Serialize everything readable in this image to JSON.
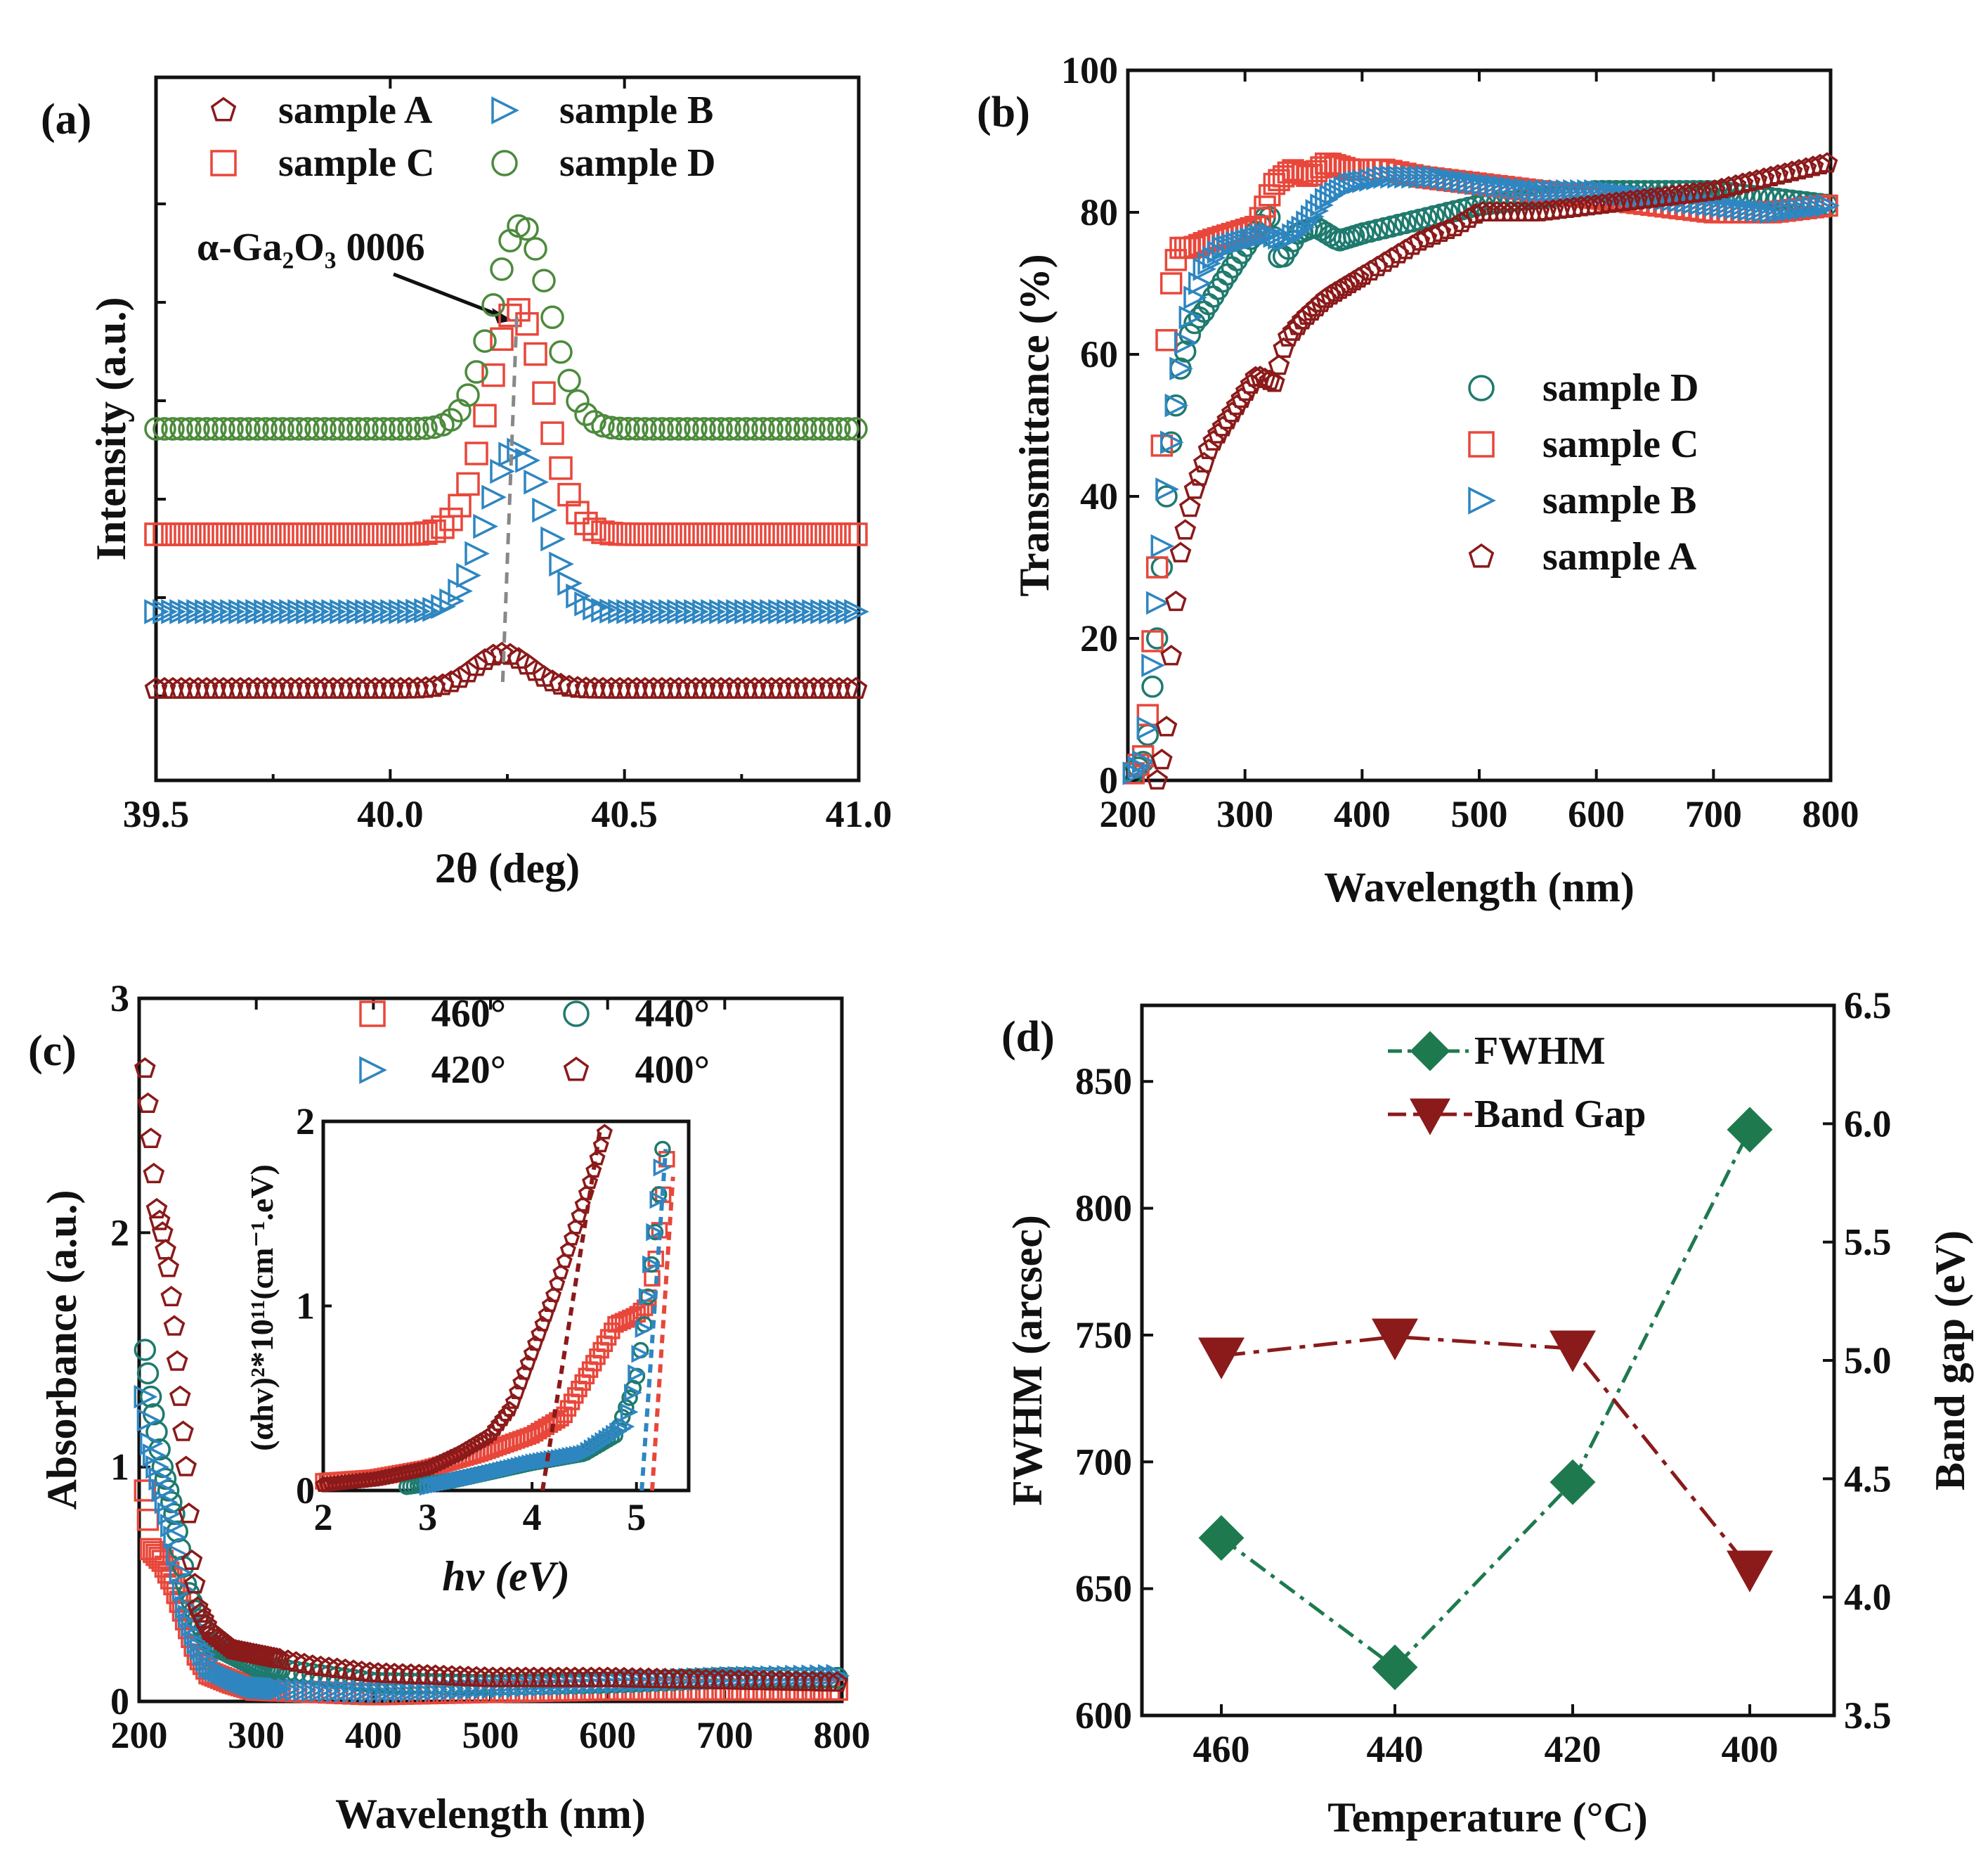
{
  "colors": {
    "sample_A": "#8b1a1a",
    "sample_B": "#2e86c1",
    "sample_C": "#e8473b",
    "sample_D": "#4c8a3c",
    "sample_D_b": "#1f7a6e",
    "fwhm": "#1e7a4e",
    "bandgap": "#8b1a1a"
  },
  "chart_data": [
    {
      "panel": "(a)",
      "type": "scatter",
      "xlabel": "2θ (deg)",
      "ylabel": "Intensity (a.u.)",
      "xlim": [
        39.5,
        41.0
      ],
      "ylim": [
        0,
        1
      ],
      "xticks": [
        "39.5",
        "40.0",
        "40.5",
        "41.0"
      ],
      "annotation": {
        "text": "α-Ga₂O₃ 0006",
        "x": 40.24
      },
      "legend": [
        "sample A",
        "sample B",
        "sample C",
        "sample D"
      ],
      "series": [
        {
          "name": "sample A",
          "marker": "pentagon",
          "color_key": "sample_A",
          "baseline": 0.13,
          "peak_x": 40.24,
          "peak_height": 0.05
        },
        {
          "name": "sample B",
          "marker": "triangle-right",
          "color_key": "sample_B",
          "baseline": 0.24,
          "peak_x": 40.27,
          "peak_height": 0.23
        },
        {
          "name": "sample C",
          "marker": "square",
          "color_key": "sample_C",
          "baseline": 0.35,
          "peak_x": 40.27,
          "peak_height": 0.32
        },
        {
          "name": "sample D",
          "marker": "circle",
          "color_key": "sample_D",
          "baseline": 0.5,
          "peak_x": 40.28,
          "peak_height": 0.29
        }
      ]
    },
    {
      "panel": "(b)",
      "type": "scatter",
      "xlabel": "Wavelength (nm)",
      "ylabel": "Transmittance (%)",
      "xlim": [
        200,
        800
      ],
      "ylim": [
        0,
        100
      ],
      "xticks": [
        "200",
        "300",
        "400",
        "500",
        "600",
        "700",
        "800"
      ],
      "yticks": [
        "0",
        "20",
        "40",
        "60",
        "80",
        "100"
      ],
      "legend": [
        "sample D",
        "sample C",
        "sample B",
        "sample A"
      ],
      "series": [
        {
          "name": "sample D",
          "marker": "circle",
          "color_key": "sample_D_b",
          "x": [
            205,
            215,
            225,
            235,
            245,
            255,
            265,
            280,
            300,
            320,
            330,
            345,
            360,
            380,
            400,
            450,
            500,
            550,
            600,
            650,
            700,
            750,
            800
          ],
          "y": [
            1,
            3,
            20,
            45,
            58,
            64,
            66,
            70,
            75,
            80,
            73,
            77,
            78,
            76,
            77,
            79,
            81,
            82,
            83,
            83,
            83,
            82,
            81
          ]
        },
        {
          "name": "sample C",
          "marker": "square",
          "color_key": "sample_C",
          "x": [
            205,
            215,
            225,
            232,
            238,
            245,
            255,
            270,
            290,
            310,
            325,
            340,
            355,
            370,
            390,
            420,
            450,
            500,
            550,
            600,
            650,
            700,
            750,
            800
          ],
          "y": [
            1,
            4,
            30,
            60,
            72,
            75,
            75,
            76,
            77,
            78,
            84,
            86,
            85,
            87,
            86,
            86,
            85,
            84,
            83,
            82,
            81,
            80,
            80,
            81
          ]
        },
        {
          "name": "sample B",
          "marker": "triangle-right",
          "color_key": "sample_B",
          "x": [
            205,
            215,
            225,
            235,
            245,
            255,
            265,
            280,
            300,
            320,
            335,
            350,
            370,
            390,
            420,
            460,
            500,
            550,
            600,
            650,
            700,
            750,
            800
          ],
          "y": [
            1,
            3,
            25,
            45,
            58,
            67,
            72,
            75,
            76,
            77,
            76,
            78,
            82,
            84,
            85,
            85,
            84,
            83,
            83,
            82,
            81,
            80,
            81
          ]
        },
        {
          "name": "sample A",
          "marker": "pentagon",
          "color_key": "sample_A",
          "x": [
            225,
            232,
            238,
            245,
            255,
            270,
            290,
            310,
            325,
            335,
            350,
            370,
            390,
            420,
            450,
            480,
            500,
            550,
            600,
            650,
            700,
            750,
            800
          ],
          "y": [
            0,
            5,
            20,
            32,
            40,
            47,
            52,
            57,
            56,
            62,
            65,
            68,
            70,
            73,
            76,
            78,
            80,
            80,
            81,
            82,
            83,
            85,
            87
          ]
        }
      ]
    },
    {
      "panel": "(c)",
      "type": "scatter",
      "xlabel": "Wavelength (nm)",
      "ylabel": "Absorbance (a.u.)",
      "xlim": [
        200,
        800
      ],
      "ylim": [
        0,
        3
      ],
      "xticks": [
        "200",
        "300",
        "400",
        "500",
        "600",
        "700",
        "800"
      ],
      "yticks": [
        "0",
        "1",
        "2",
        "3"
      ],
      "legend": [
        "460°",
        "440°",
        "420°",
        "400°"
      ],
      "series": [
        {
          "name": "460°",
          "marker": "square",
          "color_key": "sample_C",
          "x": [
            205,
            210,
            220,
            230,
            240,
            250,
            260,
            280,
            300,
            400,
            500,
            600,
            700,
            800
          ],
          "y": [
            0.9,
            0.65,
            0.6,
            0.5,
            0.35,
            0.2,
            0.12,
            0.08,
            0.05,
            0.03,
            0.04,
            0.05,
            0.05,
            0.05
          ]
        },
        {
          "name": "440°",
          "marker": "circle",
          "color_key": "sample_D_b",
          "x": [
            205,
            210,
            220,
            230,
            240,
            250,
            260,
            280,
            300,
            400,
            500,
            600,
            700,
            800
          ],
          "y": [
            1.5,
            1.3,
            1.0,
            0.8,
            0.5,
            0.35,
            0.25,
            0.2,
            0.15,
            0.08,
            0.07,
            0.08,
            0.1,
            0.1
          ]
        },
        {
          "name": "420°",
          "marker": "triangle-right",
          "color_key": "sample_B",
          "x": [
            205,
            210,
            220,
            230,
            240,
            250,
            260,
            280,
            300,
            330,
            400,
            500,
            600,
            700,
            800
          ],
          "y": [
            1.3,
            1.1,
            0.9,
            0.7,
            0.4,
            0.25,
            0.15,
            0.1,
            0.06,
            0.05,
            0.04,
            0.06,
            0.08,
            0.1,
            0.11
          ]
        },
        {
          "name": "400°",
          "marker": "pentagon",
          "color_key": "sample_A",
          "x": [
            205,
            210,
            215,
            220,
            225,
            230,
            235,
            240,
            245,
            250,
            260,
            280,
            300,
            350,
            400,
            500,
            600,
            700,
            800
          ],
          "y": [
            2.7,
            2.4,
            2.1,
            2.0,
            1.85,
            1.6,
            1.3,
            1.0,
            0.6,
            0.4,
            0.3,
            0.22,
            0.2,
            0.15,
            0.12,
            0.1,
            0.1,
            0.09,
            0.08
          ]
        }
      ]
    },
    {
      "panel": "(c) inset",
      "type": "scatter",
      "xlabel": "hv (eV)",
      "ylabel": "(αhv)²*10¹¹(cm⁻¹.eV)",
      "xlim": [
        2,
        5.5
      ],
      "ylim": [
        0,
        2
      ],
      "xticks": [
        "2",
        "3",
        "4",
        "5"
      ],
      "yticks": [
        "0",
        "1",
        "2"
      ],
      "series": [
        {
          "name": "460°",
          "color_key": "sample_C",
          "x": [
            2.0,
            2.5,
            3.0,
            3.5,
            4.0,
            4.3,
            4.6,
            4.8,
            5.0,
            5.1,
            5.2,
            5.3
          ],
          "y": [
            0.05,
            0.07,
            0.12,
            0.2,
            0.3,
            0.4,
            0.7,
            0.9,
            0.95,
            1.0,
            1.3,
            1.85
          ]
        },
        {
          "name": "440°",
          "color_key": "sample_D_b",
          "x": [
            2.8,
            3.2,
            3.6,
            4.0,
            4.5,
            4.8,
            5.0,
            5.1,
            5.2,
            5.25
          ],
          "y": [
            0.02,
            0.05,
            0.1,
            0.15,
            0.2,
            0.3,
            0.6,
            1.0,
            1.5,
            1.85
          ]
        },
        {
          "name": "420°",
          "color_key": "sample_B",
          "x": [
            3.0,
            3.5,
            4.0,
            4.5,
            4.9,
            5.05,
            5.15,
            5.25
          ],
          "y": [
            0.02,
            0.08,
            0.15,
            0.2,
            0.35,
            0.8,
            1.3,
            1.8
          ]
        },
        {
          "name": "400°",
          "color_key": "sample_A",
          "x": [
            2.0,
            2.5,
            3.0,
            3.3,
            3.6,
            3.8,
            4.0,
            4.2,
            4.4,
            4.6,
            4.7
          ],
          "y": [
            0.03,
            0.06,
            0.12,
            0.2,
            0.3,
            0.45,
            0.75,
            1.05,
            1.4,
            1.75,
            1.95
          ]
        }
      ],
      "fit_lines": [
        {
          "color_key": "sample_A",
          "x": [
            4.1,
            4.65
          ],
          "y": [
            0,
            1.95
          ]
        },
        {
          "color_key": "sample_C",
          "x": [
            5.15,
            5.35
          ],
          "y": [
            0,
            1.7
          ]
        },
        {
          "color_key": "sample_B",
          "x": [
            5.05,
            5.28
          ],
          "y": [
            0,
            1.85
          ]
        }
      ]
    },
    {
      "panel": "(d)",
      "type": "line",
      "xlabel": "Temperature (°C)",
      "ylabel": "FWHM (arcsec)",
      "ylabel_right": "Band gap (eV)",
      "categories": [
        "460",
        "440",
        "420",
        "400"
      ],
      "ylim": [
        600,
        880
      ],
      "ylim_right": [
        3.5,
        6.5
      ],
      "yticks": [
        "600",
        "650",
        "700",
        "750",
        "800",
        "850"
      ],
      "yticks_right": [
        "3.5",
        "4.0",
        "4.5",
        "5.0",
        "5.5",
        "6.0",
        "6.5"
      ],
      "legend": [
        "FWHM",
        "Band Gap"
      ],
      "series": [
        {
          "name": "FWHM",
          "axis": "left",
          "marker": "diamond",
          "color_key": "fwhm",
          "values": [
            670,
            619,
            692,
            831
          ]
        },
        {
          "name": "Band Gap",
          "axis": "right",
          "marker": "triangle-down",
          "color_key": "bandgap",
          "values": [
            5.02,
            5.1,
            5.05,
            4.12
          ]
        }
      ]
    }
  ]
}
